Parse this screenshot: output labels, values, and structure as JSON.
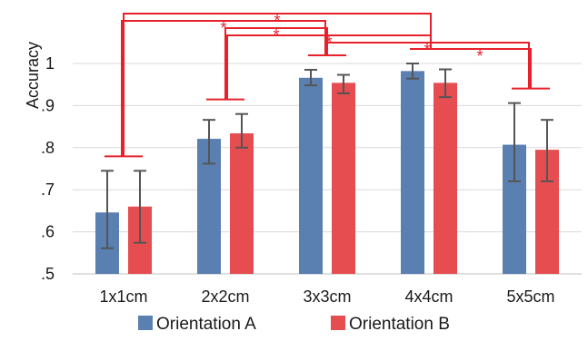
{
  "chart_data": {
    "type": "bar",
    "title": "",
    "xlabel": "",
    "ylabel": "Accuracy",
    "ylim": [
      0.5,
      1.1
    ],
    "yticks": [
      {
        "value": 0.5,
        "label": ".5"
      },
      {
        "value": 0.6,
        "label": ".6"
      },
      {
        "value": 0.7,
        "label": ".7"
      },
      {
        "value": 0.8,
        "label": ".8"
      },
      {
        "value": 0.9,
        "label": ".9"
      },
      {
        "value": 1.0,
        "label": "1"
      }
    ],
    "grid": true,
    "legend_position": "bottom",
    "categories": [
      "1x1cm",
      "2x2cm",
      "3x3cm",
      "4x4cm",
      "5x5cm"
    ],
    "series": [
      {
        "name": "Orientation A",
        "color": "#5a7fb1",
        "values": [
          0.646,
          0.821,
          0.966,
          0.982,
          0.807
        ],
        "error_low": [
          0.561,
          0.762,
          0.948,
          0.964,
          0.72
        ],
        "error_high": [
          0.745,
          0.866,
          0.985,
          1.0,
          0.906
        ]
      },
      {
        "name": "Orientation B",
        "color": "#e64d50",
        "values": [
          0.66,
          0.834,
          0.954,
          0.954,
          0.795
        ],
        "error_low": [
          0.574,
          0.8,
          0.929,
          0.92,
          0.72
        ],
        "error_high": [
          0.745,
          0.88,
          0.973,
          0.986,
          0.866
        ]
      }
    ],
    "significance": {
      "color": "#e8202a",
      "marker": "*",
      "pairs": [
        {
          "from": "1x1cm",
          "to": "4x4cm"
        },
        {
          "from": "1x1cm",
          "to": "3x3cm"
        },
        {
          "from": "2x2cm",
          "to": "3x3cm"
        },
        {
          "from": "2x2cm",
          "to": "4x4cm"
        },
        {
          "from": "3x3cm",
          "to": "5x5cm"
        },
        {
          "from": "4x4cm",
          "to": "5x5cm"
        }
      ]
    }
  }
}
